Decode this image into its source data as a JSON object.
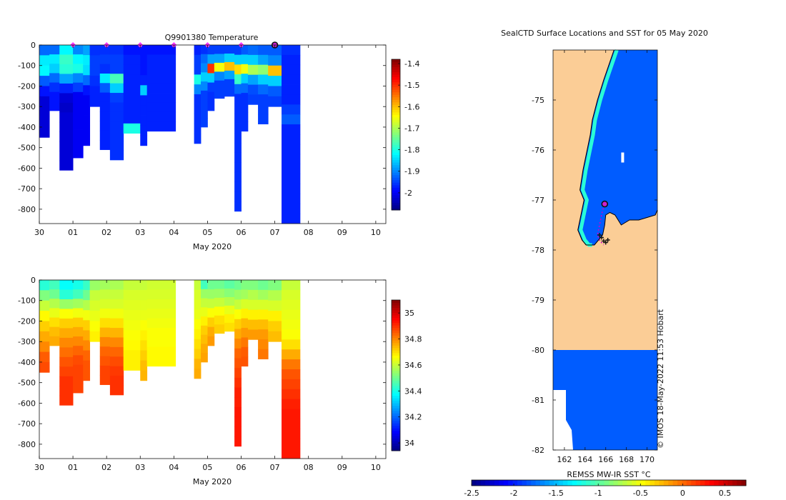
{
  "colors": {
    "land": "#fbcd96",
    "deep_water": "#1a66d9",
    "sea_ice": "#0a99f0",
    "ice_edge": "#1fc34a",
    "marker": "#ff33ff",
    "track": "#cc00cc",
    "coast": "#000000",
    "float_marker_fill": "#cc22cc"
  },
  "chart_data": [
    {
      "id": "temperature",
      "type": "heatmap",
      "title": "Q9901380  Temperature",
      "xlabel": "May 2020",
      "xlim": [
        0,
        10.3
      ],
      "x_ticks": [
        0,
        1,
        2,
        3,
        4,
        5,
        6,
        7,
        8,
        9,
        10
      ],
      "x_tick_labels": [
        "30",
        "01",
        "02",
        "03",
        "04",
        "05",
        "06",
        "07",
        "08",
        "09",
        "10"
      ],
      "ylim": [
        -870,
        0
      ],
      "y_ticks": [
        0,
        -100,
        -200,
        -300,
        -400,
        -500,
        -600,
        -700,
        -800
      ],
      "colorbar": {
        "min": -2.08,
        "max": -1.38,
        "ticks": [
          -1.4,
          -1.5,
          -1.6,
          -1.7,
          -1.8,
          -1.9,
          -2
        ],
        "tick_labels": [
          "-1.4",
          "-1.5",
          "-1.6",
          "-1.7",
          "-1.8",
          "-1.9",
          "-2"
        ]
      },
      "profile_markers_x": [
        1,
        2,
        3,
        4,
        5,
        6
      ],
      "current_profile_x": 7,
      "profiles": [
        {
          "x0": 0.0,
          "x1": 0.3,
          "max_depth": 450,
          "values": [
            -1.92,
            -1.83,
            -1.82,
            -1.93,
            -1.98,
            -2.02,
            -2.02,
            -2.02,
            -2.02
          ]
        },
        {
          "x0": 0.3,
          "x1": 0.6,
          "max_depth": 320,
          "values": [
            -1.92,
            -1.83,
            -1.85,
            -1.92,
            -1.96,
            -1.98,
            -1.98
          ]
        },
        {
          "x0": 0.6,
          "x1": 1.0,
          "max_depth": 610,
          "values": [
            -1.82,
            -1.78,
            -1.79,
            -1.88,
            -1.97,
            -2.02,
            -2.03,
            -2.02,
            -2.02,
            -2.02,
            -2.02,
            -2.02,
            -2.02
          ]
        },
        {
          "x0": 1.0,
          "x1": 1.3,
          "max_depth": 550,
          "values": [
            -1.9,
            -1.82,
            -1.8,
            -1.9,
            -1.95,
            -2.0,
            -2.0,
            -2.0,
            -2.0,
            -2.0,
            -2.0,
            -2.0
          ]
        },
        {
          "x0": 1.3,
          "x1": 1.5,
          "max_depth": 490,
          "values": [
            -1.88,
            -1.83,
            -1.84,
            -1.92,
            -1.98,
            -2.0,
            -2.0,
            -2.0,
            -2.0,
            -2.0
          ]
        },
        {
          "x0": 1.5,
          "x1": 1.8,
          "max_depth": 300,
          "values": [
            -1.96,
            -1.95,
            -1.95,
            -1.96,
            -1.97,
            -1.97
          ]
        },
        {
          "x0": 1.8,
          "x1": 2.1,
          "max_depth": 510,
          "values": [
            -1.96,
            -1.95,
            -1.96,
            -1.83,
            -1.93,
            -1.97,
            -1.97,
            -1.97,
            -1.97,
            -1.97,
            -1.97
          ]
        },
        {
          "x0": 2.1,
          "x1": 2.5,
          "max_depth": 560,
          "values": [
            -1.96,
            -1.95,
            -1.95,
            -1.77,
            -1.85,
            -1.95,
            -1.96,
            -1.96,
            -1.96,
            -1.96,
            -1.96,
            -1.96
          ]
        },
        {
          "x0": 2.5,
          "x1": 3.0,
          "max_depth": 430,
          "values": [
            -1.98,
            -1.97,
            -1.97,
            -1.97,
            -1.97,
            -1.97,
            -1.97,
            -1.97,
            -1.8
          ]
        },
        {
          "x0": 3.0,
          "x1": 3.2,
          "max_depth": 490,
          "values": [
            -1.98,
            -1.98,
            -1.98,
            -1.97,
            -1.85,
            -1.97,
            -1.97,
            -1.97,
            -1.97,
            -1.97
          ]
        },
        {
          "x0": 3.2,
          "x1": 4.05,
          "max_depth": 420,
          "values": [
            -1.98,
            -1.97,
            -1.97,
            -1.97,
            -1.97,
            -1.97,
            -1.97,
            -1.97,
            -1.97
          ]
        },
        {
          "x0": 4.6,
          "x1": 4.8,
          "max_depth": 480,
          "values": [
            -1.97,
            -1.95,
            -1.95,
            -1.8,
            -1.9,
            -1.96,
            -1.96,
            -1.96,
            -1.96,
            -1.96
          ]
        },
        {
          "x0": 4.8,
          "x1": 5.0,
          "max_depth": 400,
          "values": [
            -1.96,
            -1.92,
            -1.9,
            -1.85,
            -1.9,
            -1.95,
            -1.95,
            -1.95,
            -1.95
          ]
        },
        {
          "x0": 5.0,
          "x1": 5.2,
          "max_depth": 320,
          "values": [
            -1.95,
            -1.88,
            -1.5,
            -1.85,
            -1.95,
            -1.96,
            -1.96
          ]
        },
        {
          "x0": 5.2,
          "x1": 5.5,
          "max_depth": 260,
          "values": [
            -1.95,
            -1.88,
            -1.65,
            -1.9,
            -1.95,
            -1.95
          ]
        },
        {
          "x0": 5.5,
          "x1": 5.8,
          "max_depth": 250,
          "values": [
            -1.95,
            -1.85,
            -1.6,
            -1.88,
            -1.95,
            -1.95
          ]
        },
        {
          "x0": 5.8,
          "x1": 6.0,
          "max_depth": 810,
          "values": [
            -1.95,
            -1.85,
            -1.62,
            -1.78,
            -1.92,
            -1.96,
            -1.96,
            -1.96,
            -1.96,
            -1.96,
            -1.96,
            -1.96,
            -1.96,
            -1.96,
            -1.96,
            -1.96,
            -1.96
          ]
        },
        {
          "x0": 6.0,
          "x1": 6.2,
          "max_depth": 420,
          "values": [
            -1.93,
            -1.85,
            -1.65,
            -1.85,
            -1.92,
            -1.96,
            -1.96,
            -1.96,
            -1.96
          ]
        },
        {
          "x0": 6.2,
          "x1": 6.5,
          "max_depth": 290,
          "values": [
            -1.92,
            -1.85,
            -1.7,
            -1.88,
            -1.94,
            -1.95
          ]
        },
        {
          "x0": 6.5,
          "x1": 6.8,
          "max_depth": 385,
          "values": [
            -1.93,
            -1.88,
            -1.72,
            -1.85,
            -1.92,
            -1.95,
            -1.95,
            -1.95
          ]
        },
        {
          "x0": 6.8,
          "x1": 7.2,
          "max_depth": 300,
          "values": [
            -1.93,
            -1.9,
            -1.6,
            -1.85,
            -1.93,
            -1.95
          ]
        },
        {
          "x0": 7.2,
          "x1": 7.75,
          "max_depth": 870,
          "values": [
            -1.96,
            -1.97,
            -1.97,
            -1.97,
            -1.97,
            -1.97,
            -1.95,
            -1.93,
            -1.97,
            -1.97,
            -1.97,
            -1.97,
            -1.97,
            -1.97,
            -1.97,
            -1.97,
            -1.97,
            -1.97
          ]
        }
      ]
    },
    {
      "id": "salinity",
      "type": "heatmap",
      "title": "",
      "xlabel": "May 2020",
      "xlim": [
        0,
        10.3
      ],
      "x_ticks": [
        0,
        1,
        2,
        3,
        4,
        5,
        6,
        7,
        8,
        9,
        10
      ],
      "x_tick_labels": [
        "30",
        "01",
        "02",
        "03",
        "04",
        "05",
        "06",
        "07",
        "08",
        "09",
        "10"
      ],
      "ylim": [
        -870,
        0
      ],
      "y_ticks": [
        0,
        -100,
        -200,
        -300,
        -400,
        -500,
        -600,
        -700,
        -800
      ],
      "colorbar": {
        "min": 33.94,
        "max": 35.1,
        "ticks": [
          35,
          34.8,
          34.6,
          34.4,
          34.2,
          34
        ],
        "tick_labels": [
          "35",
          "34.8",
          "34.6",
          "34.4",
          "34.2",
          "34"
        ]
      },
      "profiles": [
        {
          "x0": 0.0,
          "x1": 0.3,
          "max_depth": 450,
          "values": [
            34.42,
            34.52,
            34.6,
            34.67,
            34.72,
            34.76,
            34.8,
            34.85,
            34.87
          ]
        },
        {
          "x0": 0.3,
          "x1": 0.6,
          "max_depth": 320,
          "values": [
            34.45,
            34.5,
            34.58,
            34.64,
            34.7,
            34.74,
            34.76
          ]
        },
        {
          "x0": 0.6,
          "x1": 1.0,
          "max_depth": 610,
          "values": [
            34.38,
            34.42,
            34.55,
            34.66,
            34.72,
            34.76,
            34.8,
            34.83,
            34.86,
            34.88,
            34.9,
            34.9,
            34.9
          ]
        },
        {
          "x0": 1.0,
          "x1": 1.3,
          "max_depth": 550,
          "values": [
            34.4,
            34.45,
            34.56,
            34.65,
            34.72,
            34.76,
            34.8,
            34.84,
            34.87,
            34.88,
            34.88,
            34.88
          ]
        },
        {
          "x0": 1.3,
          "x1": 1.5,
          "max_depth": 490,
          "values": [
            34.44,
            34.5,
            34.58,
            34.65,
            34.72,
            34.76,
            34.8,
            34.84,
            34.86,
            34.86
          ]
        },
        {
          "x0": 1.5,
          "x1": 1.8,
          "max_depth": 300,
          "values": [
            34.55,
            34.6,
            34.62,
            34.64,
            34.66,
            34.68
          ]
        },
        {
          "x0": 1.8,
          "x1": 2.1,
          "max_depth": 510,
          "values": [
            34.56,
            34.6,
            34.62,
            34.65,
            34.7,
            34.75,
            34.8,
            34.84,
            34.86,
            34.88,
            34.88
          ]
        },
        {
          "x0": 2.1,
          "x1": 2.5,
          "max_depth": 560,
          "values": [
            34.57,
            34.6,
            34.62,
            34.65,
            34.7,
            34.75,
            34.8,
            34.84,
            34.87,
            34.89,
            34.9,
            34.9
          ]
        },
        {
          "x0": 2.5,
          "x1": 3.0,
          "max_depth": 440,
          "values": [
            34.6,
            34.62,
            34.63,
            34.64,
            34.65,
            34.66,
            34.67,
            34.68,
            34.68
          ]
        },
        {
          "x0": 3.0,
          "x1": 3.2,
          "max_depth": 490,
          "values": [
            34.6,
            34.62,
            34.63,
            34.64,
            34.66,
            34.68,
            34.7,
            34.72,
            34.74,
            34.75
          ]
        },
        {
          "x0": 3.2,
          "x1": 4.05,
          "max_depth": 420,
          "values": [
            34.61,
            34.62,
            34.63,
            34.64,
            34.65,
            34.66,
            34.66,
            34.67,
            34.67
          ]
        },
        {
          "x0": 4.6,
          "x1": 4.8,
          "max_depth": 480,
          "values": [
            34.6,
            34.62,
            34.63,
            34.64,
            34.66,
            34.68,
            34.7,
            34.72,
            34.75,
            34.76
          ]
        },
        {
          "x0": 4.8,
          "x1": 5.0,
          "max_depth": 400,
          "values": [
            34.45,
            34.55,
            34.6,
            34.64,
            34.68,
            34.72,
            34.74,
            34.76,
            34.77
          ]
        },
        {
          "x0": 5.0,
          "x1": 5.2,
          "max_depth": 320,
          "values": [
            34.5,
            34.55,
            34.6,
            34.66,
            34.72,
            34.76,
            34.78
          ]
        },
        {
          "x0": 5.2,
          "x1": 5.5,
          "max_depth": 260,
          "values": [
            34.5,
            34.55,
            34.6,
            34.66,
            34.7,
            34.72
          ]
        },
        {
          "x0": 5.5,
          "x1": 5.8,
          "max_depth": 250,
          "values": [
            34.48,
            34.53,
            34.58,
            34.64,
            34.68,
            34.7
          ]
        },
        {
          "x0": 5.8,
          "x1": 6.0,
          "max_depth": 810,
          "values": [
            34.5,
            34.55,
            34.6,
            34.66,
            34.72,
            34.76,
            34.8,
            34.84,
            34.86,
            34.88,
            34.9,
            34.92,
            34.92,
            34.93,
            34.93,
            34.93,
            34.93
          ]
        },
        {
          "x0": 6.0,
          "x1": 6.2,
          "max_depth": 420,
          "values": [
            34.52,
            34.56,
            34.62,
            34.68,
            34.74,
            34.78,
            34.82,
            34.85,
            34.86
          ]
        },
        {
          "x0": 6.2,
          "x1": 6.5,
          "max_depth": 290,
          "values": [
            34.52,
            34.58,
            34.62,
            34.68,
            34.74,
            34.78
          ]
        },
        {
          "x0": 6.5,
          "x1": 6.8,
          "max_depth": 385,
          "values": [
            34.5,
            34.56,
            34.62,
            34.68,
            34.74,
            34.78,
            34.8,
            34.82
          ]
        },
        {
          "x0": 6.8,
          "x1": 7.2,
          "max_depth": 300,
          "values": [
            34.52,
            34.58,
            34.62,
            34.68,
            34.72,
            34.74
          ]
        },
        {
          "x0": 7.2,
          "x1": 7.75,
          "max_depth": 870,
          "values": [
            34.6,
            34.62,
            34.63,
            34.64,
            34.65,
            34.66,
            34.7,
            34.76,
            34.82,
            34.86,
            34.88,
            34.9,
            34.92,
            34.93,
            34.93,
            34.93,
            34.93,
            34.93
          ]
        }
      ]
    },
    {
      "id": "sst_map",
      "type": "heatmap",
      "title": "SealCTD Surface Locations and SST for 05 May 2020",
      "xlabel": "",
      "xlim": [
        160.9,
        171.0
      ],
      "x_ticks": [
        162,
        164,
        166,
        168,
        170
      ],
      "x_tick_labels": [
        "162",
        "164",
        "166",
        "168",
        "170"
      ],
      "ylim": [
        -82,
        -74.0
      ],
      "y_ticks": [
        -75,
        -76,
        -77,
        -78,
        -79,
        -80,
        -81,
        -82
      ],
      "y_tick_labels": [
        "-75",
        "-76",
        "-77",
        "-78",
        "-79",
        "-80",
        "-81",
        "-82"
      ],
      "colorbar": {
        "label": "REMSS MW-IR SST °C",
        "min": -2.5,
        "max": 0.75,
        "ticks": [
          -2.5,
          -2,
          -1.5,
          -1,
          -0.5,
          0,
          0.5
        ],
        "tick_labels": [
          "-2.5",
          "-2",
          "-1.5",
          "-1",
          "-0.5",
          "0",
          "0.5"
        ]
      },
      "sst_water_value": -1.8,
      "ice_edge_value": -1.15,
      "ice_shelf_lat": -80.0,
      "coast_lon": [
        166.8,
        165.8,
        165.2,
        164.7,
        164.5,
        164.2,
        163.8,
        163.5,
        163.9,
        163.6,
        163.3,
        163.7,
        164.1,
        164.4,
        164.9,
        165.3,
        165.7,
        165.9,
        166.0,
        166.4,
        166.9,
        167.5,
        168.3,
        169.2,
        170.0,
        170.8,
        171.0
      ],
      "coast_lat": [
        -74.0,
        -74.6,
        -75.0,
        -75.4,
        -75.7,
        -76.0,
        -76.4,
        -76.8,
        -77.0,
        -77.3,
        -77.6,
        -77.8,
        -77.9,
        -77.9,
        -77.9,
        -77.8,
        -77.7,
        -77.5,
        -77.3,
        -77.25,
        -77.3,
        -77.5,
        -77.4,
        -77.4,
        -77.35,
        -77.3,
        -77.2
      ],
      "track_lon": [
        165.9,
        165.7,
        165.6,
        165.5,
        165.4,
        165.3,
        165.2,
        165.3,
        165.4,
        165.5,
        165.6,
        165.8
      ],
      "track_lat": [
        -77.1,
        -77.2,
        -77.3,
        -77.4,
        -77.5,
        -77.6,
        -77.7,
        -77.75,
        -77.8,
        -77.85,
        -77.85,
        -77.9
      ],
      "current_position": [
        165.9,
        -77.08
      ]
    }
  ],
  "credit": "© IMOS 18-May-2022 11:53 Hobart"
}
